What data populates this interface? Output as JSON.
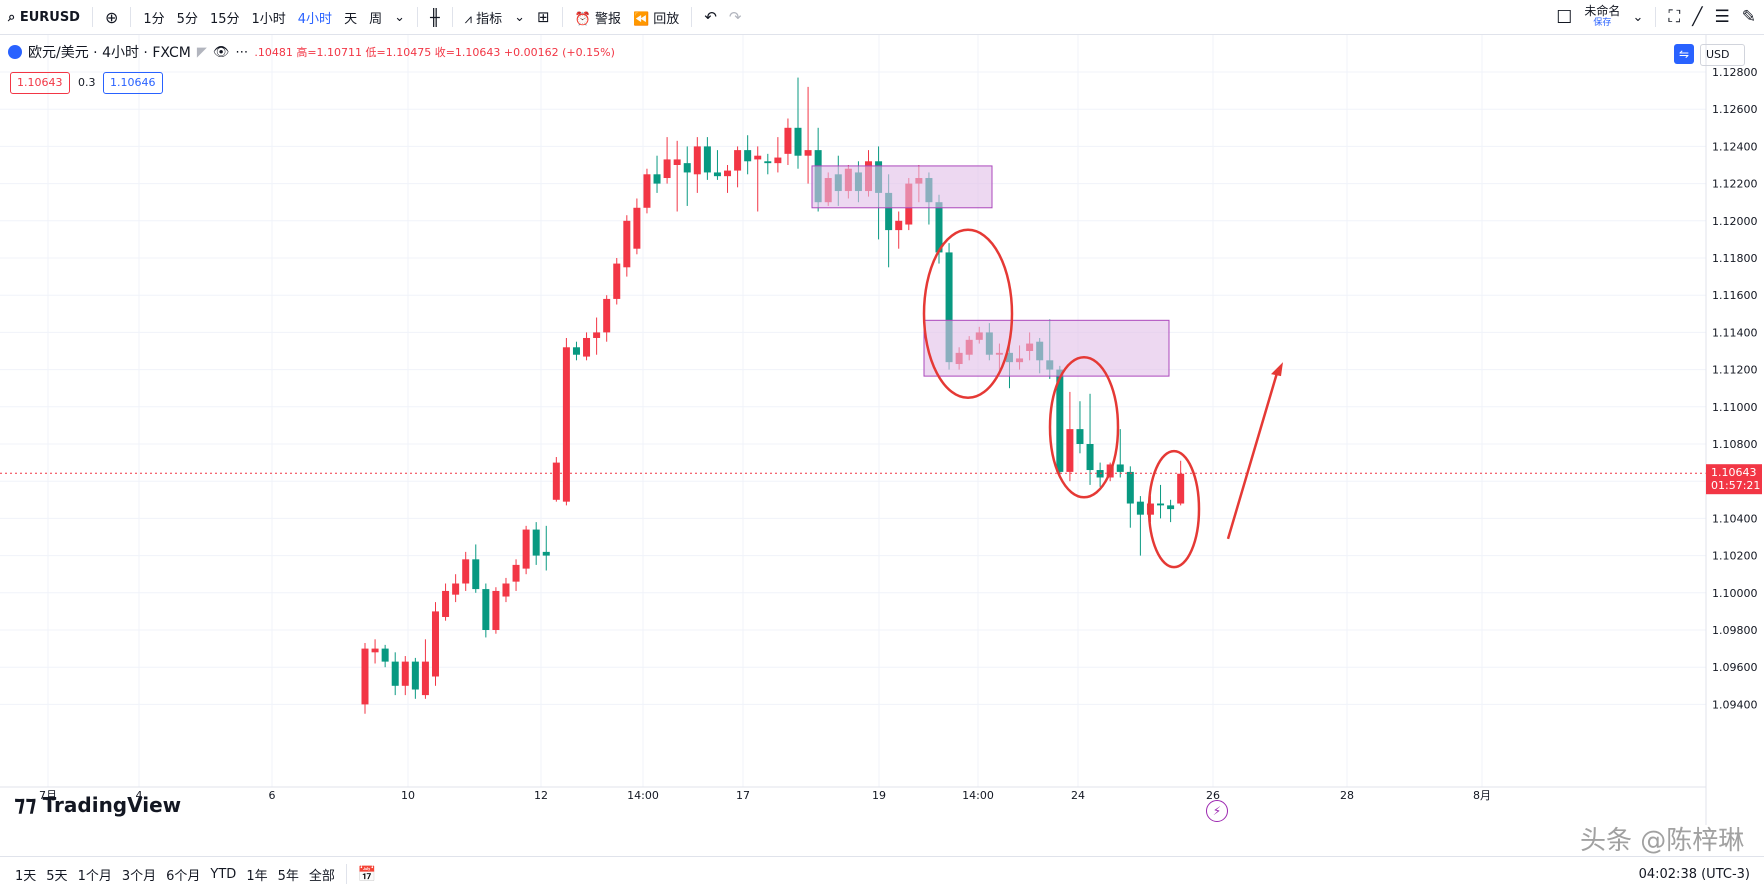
{
  "toolbar": {
    "symbol": "EURUSD",
    "intervals": [
      "1分",
      "5分",
      "15分",
      "1小时",
      "4小时",
      "天",
      "周"
    ],
    "active_interval": "4小时",
    "indicators_label": "指标",
    "alert_label": "警报",
    "replay_label": "回放",
    "layout_name": "未命名",
    "save_label": "保存"
  },
  "legend": {
    "title": "欧元/美元 · 4小时 · FXCM",
    "ohlc": ".10481 高=1.10711 低=1.10475 收=1.10643 +0.00162 (+0.15%)",
    "bid": "1.10643",
    "spread": "0.3",
    "ask": "1.10646"
  },
  "currency": "USD",
  "price_axis": {
    "ticks": [
      "1.12800",
      "1.12600",
      "1.12400",
      "1.12200",
      "1.12000",
      "1.11800",
      "1.11600",
      "1.11400",
      "1.11200",
      "1.11000",
      "1.10800",
      "1.10600",
      "1.10400",
      "1.10200",
      "1.10000",
      "1.09800",
      "1.09600",
      "1.09400"
    ],
    "current_price": "1.10643",
    "countdown": "01:57:21"
  },
  "time_axis": {
    "labels": [
      "7月",
      "4",
      "6",
      "10",
      "12",
      "14:00",
      "17",
      "19",
      "14:00",
      "24",
      "26",
      "28",
      "8月"
    ]
  },
  "logo_text": "TradingView",
  "bottombar": {
    "ranges": [
      "1天",
      "5天",
      "1个月",
      "3个月",
      "6个月",
      "YTD",
      "1年",
      "5年",
      "全部"
    ],
    "clock": "04:02:38 (UTC-3)"
  },
  "watermark": "头条 @陈梓琳",
  "colors": {
    "up": "#f23645",
    "down": "#089981",
    "zone": "#e1bee7",
    "annot": "#e53935"
  },
  "chart_data": {
    "type": "candlestick",
    "symbol": "EURUSD",
    "ylim": [
      1.0935,
      1.1288
    ],
    "candles": [
      {
        "o": 1.094,
        "h": 1.0973,
        "l": 1.0935,
        "c": 1.097
      },
      {
        "o": 1.0968,
        "h": 1.0975,
        "l": 1.0962,
        "c": 1.097
      },
      {
        "o": 1.097,
        "h": 1.0972,
        "l": 1.096,
        "c": 1.0963
      },
      {
        "o": 1.0963,
        "h": 1.0968,
        "l": 1.0945,
        "c": 1.095
      },
      {
        "o": 1.095,
        "h": 1.0966,
        "l": 1.0945,
        "c": 1.0963
      },
      {
        "o": 1.0963,
        "h": 1.0965,
        "l": 1.0943,
        "c": 1.0948
      },
      {
        "o": 1.0945,
        "h": 1.0975,
        "l": 1.0943,
        "c": 1.0963
      },
      {
        "o": 1.0955,
        "h": 1.0995,
        "l": 1.095,
        "c": 1.099
      },
      {
        "o": 1.0987,
        "h": 1.1005,
        "l": 1.0985,
        "c": 1.1001
      },
      {
        "o": 1.0999,
        "h": 1.101,
        "l": 1.0995,
        "c": 1.1005
      },
      {
        "o": 1.1005,
        "h": 1.1022,
        "l": 1.1001,
        "c": 1.1018
      },
      {
        "o": 1.1018,
        "h": 1.1026,
        "l": 1.1,
        "c": 1.1002
      },
      {
        "o": 1.1002,
        "h": 1.1005,
        "l": 1.0976,
        "c": 1.098
      },
      {
        "o": 1.098,
        "h": 1.1003,
        "l": 1.0978,
        "c": 1.1001
      },
      {
        "o": 1.0998,
        "h": 1.1008,
        "l": 1.0995,
        "c": 1.1005
      },
      {
        "o": 1.1006,
        "h": 1.1018,
        "l": 1.1001,
        "c": 1.1015
      },
      {
        "o": 1.1013,
        "h": 1.1036,
        "l": 1.101,
        "c": 1.1034
      },
      {
        "o": 1.1034,
        "h": 1.1038,
        "l": 1.1015,
        "c": 1.102
      },
      {
        "o": 1.1022,
        "h": 1.1036,
        "l": 1.1012,
        "c": 1.102
      },
      {
        "o": 1.105,
        "h": 1.1073,
        "l": 1.1049,
        "c": 1.107
      },
      {
        "o": 1.1049,
        "h": 1.1137,
        "l": 1.1047,
        "c": 1.1132
      },
      {
        "o": 1.1132,
        "h": 1.1135,
        "l": 1.1125,
        "c": 1.1128
      },
      {
        "o": 1.1127,
        "h": 1.114,
        "l": 1.1125,
        "c": 1.1137
      },
      {
        "o": 1.1137,
        "h": 1.1148,
        "l": 1.1128,
        "c": 1.114
      },
      {
        "o": 1.114,
        "h": 1.116,
        "l": 1.1135,
        "c": 1.1158
      },
      {
        "o": 1.1158,
        "h": 1.118,
        "l": 1.1155,
        "c": 1.1177
      },
      {
        "o": 1.1175,
        "h": 1.1203,
        "l": 1.117,
        "c": 1.12
      },
      {
        "o": 1.1185,
        "h": 1.1212,
        "l": 1.1182,
        "c": 1.1207
      },
      {
        "o": 1.1207,
        "h": 1.1228,
        "l": 1.1204,
        "c": 1.1225
      },
      {
        "o": 1.1225,
        "h": 1.1235,
        "l": 1.1215,
        "c": 1.122
      },
      {
        "o": 1.1223,
        "h": 1.1245,
        "l": 1.122,
        "c": 1.1233
      },
      {
        "o": 1.123,
        "h": 1.1243,
        "l": 1.1205,
        "c": 1.1233
      },
      {
        "o": 1.1231,
        "h": 1.124,
        "l": 1.1208,
        "c": 1.1226
      },
      {
        "o": 1.1225,
        "h": 1.1245,
        "l": 1.1215,
        "c": 1.124
      },
      {
        "o": 1.124,
        "h": 1.1245,
        "l": 1.1222,
        "c": 1.1226
      },
      {
        "o": 1.1226,
        "h": 1.1238,
        "l": 1.1222,
        "c": 1.1224
      },
      {
        "o": 1.1224,
        "h": 1.123,
        "l": 1.1215,
        "c": 1.1227
      },
      {
        "o": 1.1227,
        "h": 1.124,
        "l": 1.1218,
        "c": 1.1238
      },
      {
        "o": 1.1238,
        "h": 1.1246,
        "l": 1.1225,
        "c": 1.1232
      },
      {
        "o": 1.1233,
        "h": 1.124,
        "l": 1.1205,
        "c": 1.1235
      },
      {
        "o": 1.1232,
        "h": 1.1236,
        "l": 1.1225,
        "c": 1.1231
      },
      {
        "o": 1.1231,
        "h": 1.1245,
        "l": 1.1226,
        "c": 1.1234
      },
      {
        "o": 1.1236,
        "h": 1.1255,
        "l": 1.123,
        "c": 1.125
      },
      {
        "o": 1.125,
        "h": 1.1277,
        "l": 1.1228,
        "c": 1.1235
      },
      {
        "o": 1.1235,
        "h": 1.1272,
        "l": 1.122,
        "c": 1.1238
      },
      {
        "o": 1.1238,
        "h": 1.125,
        "l": 1.1205,
        "c": 1.121
      },
      {
        "o": 1.121,
        "h": 1.1226,
        "l": 1.1208,
        "c": 1.1223
      },
      {
        "o": 1.1225,
        "h": 1.1235,
        "l": 1.1208,
        "c": 1.1216
      },
      {
        "o": 1.1216,
        "h": 1.123,
        "l": 1.1212,
        "c": 1.1228
      },
      {
        "o": 1.1226,
        "h": 1.1232,
        "l": 1.121,
        "c": 1.1216
      },
      {
        "o": 1.1216,
        "h": 1.1238,
        "l": 1.1213,
        "c": 1.1232
      },
      {
        "o": 1.1232,
        "h": 1.124,
        "l": 1.119,
        "c": 1.1215
      },
      {
        "o": 1.1215,
        "h": 1.1225,
        "l": 1.1175,
        "c": 1.1195
      },
      {
        "o": 1.1195,
        "h": 1.1205,
        "l": 1.1185,
        "c": 1.12
      },
      {
        "o": 1.1198,
        "h": 1.1223,
        "l": 1.1195,
        "c": 1.122
      },
      {
        "o": 1.122,
        "h": 1.123,
        "l": 1.121,
        "c": 1.1223
      },
      {
        "o": 1.1223,
        "h": 1.1226,
        "l": 1.1198,
        "c": 1.121
      },
      {
        "o": 1.121,
        "h": 1.1214,
        "l": 1.1177,
        "c": 1.1183
      },
      {
        "o": 1.1183,
        "h": 1.1188,
        "l": 1.112,
        "c": 1.1124
      },
      {
        "o": 1.1123,
        "h": 1.1132,
        "l": 1.112,
        "c": 1.1129
      },
      {
        "o": 1.1128,
        "h": 1.1138,
        "l": 1.1125,
        "c": 1.1136
      },
      {
        "o": 1.1136,
        "h": 1.1143,
        "l": 1.1134,
        "c": 1.114
      },
      {
        "o": 1.114,
        "h": 1.1145,
        "l": 1.1125,
        "c": 1.1128
      },
      {
        "o": 1.1128,
        "h": 1.1134,
        "l": 1.112,
        "c": 1.1129
      },
      {
        "o": 1.1129,
        "h": 1.1138,
        "l": 1.111,
        "c": 1.1124
      },
      {
        "o": 1.1124,
        "h": 1.1133,
        "l": 1.112,
        "c": 1.1126
      },
      {
        "o": 1.113,
        "h": 1.114,
        "l": 1.1125,
        "c": 1.1134
      },
      {
        "o": 1.1135,
        "h": 1.1137,
        "l": 1.1118,
        "c": 1.1125
      },
      {
        "o": 1.1125,
        "h": 1.1147,
        "l": 1.1115,
        "c": 1.112
      },
      {
        "o": 1.112,
        "h": 1.1122,
        "l": 1.1063,
        "c": 1.1065
      },
      {
        "o": 1.1065,
        "h": 1.1108,
        "l": 1.106,
        "c": 1.1088
      },
      {
        "o": 1.1088,
        "h": 1.1103,
        "l": 1.1075,
        "c": 1.108
      },
      {
        "o": 1.108,
        "h": 1.1107,
        "l": 1.1058,
        "c": 1.1066
      },
      {
        "o": 1.1066,
        "h": 1.107,
        "l": 1.1057,
        "c": 1.1062
      },
      {
        "o": 1.1062,
        "h": 1.107,
        "l": 1.106,
        "c": 1.1069
      },
      {
        "o": 1.1069,
        "h": 1.1088,
        "l": 1.1062,
        "c": 1.1065
      },
      {
        "o": 1.1065,
        "h": 1.1068,
        "l": 1.1035,
        "c": 1.1048
      },
      {
        "o": 1.1049,
        "h": 1.1052,
        "l": 1.102,
        "c": 1.1042
      },
      {
        "o": 1.1042,
        "h": 1.1052,
        "l": 1.1038,
        "c": 1.1048
      },
      {
        "o": 1.1048,
        "h": 1.1058,
        "l": 1.104,
        "c": 1.1047
      },
      {
        "o": 1.1047,
        "h": 1.105,
        "l": 1.1038,
        "c": 1.1045
      },
      {
        "o": 1.1048,
        "h": 1.1071,
        "l": 1.1047,
        "c": 1.1064
      }
    ]
  }
}
